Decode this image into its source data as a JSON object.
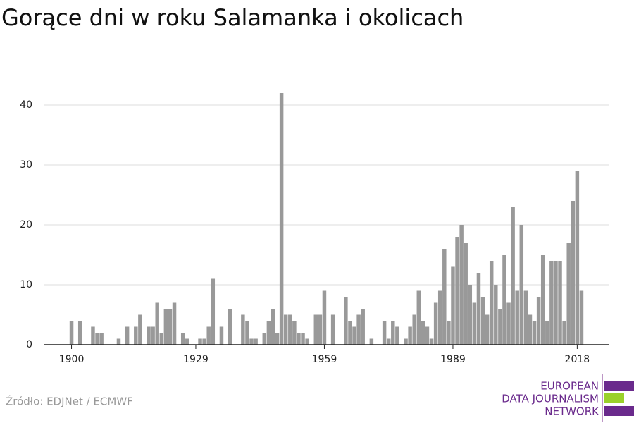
{
  "chart_data": {
    "type": "bar",
    "title": "Gorące dni w roku Salamanka i okolicach",
    "source": "Źródło: EDJNet / ECMWF",
    "logo_lines": [
      "EUROPEAN",
      "DATA JOURNALISM",
      "NETWORK"
    ],
    "color": "#999999",
    "x": [
      1900,
      1901,
      1902,
      1903,
      1904,
      1905,
      1906,
      1907,
      1908,
      1909,
      1910,
      1911,
      1912,
      1913,
      1914,
      1915,
      1916,
      1917,
      1918,
      1919,
      1920,
      1921,
      1922,
      1923,
      1924,
      1925,
      1926,
      1927,
      1928,
      1929,
      1930,
      1931,
      1932,
      1933,
      1934,
      1935,
      1936,
      1937,
      1938,
      1939,
      1940,
      1941,
      1942,
      1943,
      1944,
      1945,
      1946,
      1947,
      1948,
      1949,
      1950,
      1951,
      1952,
      1953,
      1954,
      1955,
      1956,
      1957,
      1958,
      1959,
      1960,
      1961,
      1962,
      1963,
      1964,
      1965,
      1966,
      1967,
      1968,
      1969,
      1970,
      1971,
      1972,
      1973,
      1974,
      1975,
      1976,
      1977,
      1978,
      1979,
      1980,
      1981,
      1982,
      1983,
      1984,
      1985,
      1986,
      1987,
      1988,
      1989,
      1990,
      1991,
      1992,
      1993,
      1994,
      1995,
      1996,
      1997,
      1998,
      1999,
      2000,
      2001,
      2002,
      2003,
      2004,
      2005,
      2006,
      2007,
      2008,
      2009,
      2010,
      2011,
      2012,
      2013,
      2014,
      2015,
      2016,
      2017,
      2018,
      2019
    ],
    "values": [
      4,
      0,
      4,
      0,
      0,
      3,
      2,
      2,
      0,
      0,
      0,
      1,
      0,
      3,
      0,
      3,
      5,
      0,
      3,
      3,
      7,
      2,
      6,
      6,
      7,
      0,
      2,
      1,
      0,
      0,
      1,
      1,
      3,
      11,
      0,
      3,
      0,
      6,
      0,
      0,
      5,
      4,
      1,
      1,
      0,
      2,
      4,
      6,
      2,
      42,
      5,
      5,
      4,
      2,
      2,
      1,
      0,
      5,
      5,
      9,
      0,
      5,
      0,
      0,
      8,
      4,
      3,
      5,
      6,
      0,
      1,
      0,
      0,
      4,
      1,
      4,
      3,
      0,
      1,
      3,
      5,
      9,
      4,
      3,
      1,
      7,
      9,
      16,
      4,
      13,
      18,
      20,
      17,
      10,
      7,
      12,
      8,
      5,
      14,
      10,
      6,
      15,
      7,
      23,
      9,
      20,
      9,
      5,
      4,
      8,
      15,
      4,
      14,
      14,
      14,
      4,
      17,
      24,
      29,
      9
    ],
    "xlim": [
      1893.5,
      2025.5
    ],
    "xticks": [
      1900,
      1929,
      1959,
      1989,
      2018
    ],
    "ylim": [
      0,
      45
    ],
    "yticks": [
      0,
      10,
      20,
      30,
      40
    ],
    "grid": true
  }
}
